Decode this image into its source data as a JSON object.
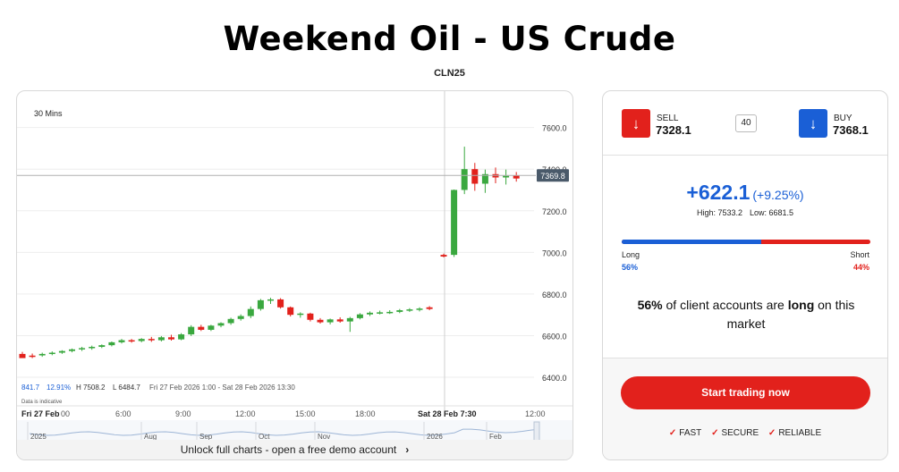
{
  "header": {
    "title": "Weekend Oil - US Crude",
    "code": "CLN25"
  },
  "chart_panel": {
    "interval_label": "30 Mins",
    "stats": {
      "change": "841.7",
      "change_pct": "12.91%",
      "high": "H 7508.2",
      "low": "L 6484.7",
      "range": "Fri 27 Feb 2026 1:00 - Sat 28 Feb 2026 13:30"
    },
    "indicative_note": "Data is indicative",
    "unlock_text": "Unlock full charts - open a free demo account",
    "navigator_labels": [
      "2025",
      "Aug",
      "Sep",
      "Oct",
      "Nov",
      "2026",
      "Feb"
    ]
  },
  "chart_data": {
    "type": "candlestick",
    "ylim": [
      6400,
      7650
    ],
    "y_ticks": [
      "6400.0",
      "6600.0",
      "6800.0",
      "7000.0",
      "7200.0",
      "7400.0",
      "7600.0"
    ],
    "x_tick_labels": [
      "Fri 27 Feb",
      "00",
      "6:00",
      "9:00",
      "12:00",
      "15:00",
      "18:00",
      "Sat 28 Feb 7:30",
      "12:00"
    ],
    "current_price_label": "7369.8",
    "current_price": 7369.8,
    "candles": [
      [
        6512,
        6522,
        6495,
        6492
      ],
      [
        6504,
        6514,
        6492,
        6498
      ],
      [
        6505,
        6518,
        6498,
        6512
      ],
      [
        6512,
        6524,
        6506,
        6518
      ],
      [
        6518,
        6530,
        6512,
        6526
      ],
      [
        6526,
        6538,
        6520,
        6534
      ],
      [
        6534,
        6546,
        6526,
        6540
      ],
      [
        6540,
        6552,
        6532,
        6546
      ],
      [
        6546,
        6558,
        6540,
        6554
      ],
      [
        6554,
        6572,
        6548,
        6568
      ],
      [
        6568,
        6584,
        6562,
        6578
      ],
      [
        6578,
        6584,
        6566,
        6574
      ],
      [
        6574,
        6588,
        6568,
        6584
      ],
      [
        6584,
        6594,
        6570,
        6578
      ],
      [
        6578,
        6598,
        6572,
        6592
      ],
      [
        6592,
        6604,
        6576,
        6582
      ],
      [
        6582,
        6612,
        6578,
        6606
      ],
      [
        6606,
        6650,
        6598,
        6642
      ],
      [
        6642,
        6652,
        6622,
        6628
      ],
      [
        6628,
        6652,
        6622,
        6648
      ],
      [
        6648,
        6664,
        6640,
        6660
      ],
      [
        6660,
        6686,
        6652,
        6680
      ],
      [
        6680,
        6702,
        6672,
        6694
      ],
      [
        6694,
        6740,
        6684,
        6728
      ],
      [
        6728,
        6776,
        6720,
        6770
      ],
      [
        6770,
        6782,
        6752,
        6774
      ],
      [
        6774,
        6780,
        6730,
        6736
      ],
      [
        6736,
        6740,
        6692,
        6700
      ],
      [
        6700,
        6712,
        6686,
        6706
      ],
      [
        6706,
        6710,
        6668,
        6676
      ],
      [
        6676,
        6684,
        6658,
        6664
      ],
      [
        6664,
        6682,
        6654,
        6678
      ],
      [
        6678,
        6688,
        6662,
        6668
      ],
      [
        6668,
        6690,
        6618,
        6684
      ],
      [
        6684,
        6708,
        6678,
        6702
      ],
      [
        6702,
        6716,
        6694,
        6710
      ],
      [
        6710,
        6720,
        6702,
        6712
      ],
      [
        6712,
        6722,
        6704,
        6714
      ],
      [
        6714,
        6728,
        6708,
        6722
      ],
      [
        6722,
        6732,
        6714,
        6726
      ],
      [
        6726,
        6736,
        6716,
        6730
      ],
      [
        6736,
        6742,
        6722,
        6728
      ],
      [
        6988,
        6994,
        6976,
        6980
      ],
      [
        6988,
        7302,
        6978,
        7300
      ],
      [
        7300,
        7508,
        7280,
        7400
      ],
      [
        7400,
        7430,
        7296,
        7330
      ],
      [
        7330,
        7398,
        7286,
        7376
      ],
      [
        7376,
        7408,
        7332,
        7360
      ],
      [
        7360,
        7398,
        7326,
        7368
      ],
      [
        7370,
        7386,
        7340,
        7355
      ]
    ]
  },
  "trade_panel": {
    "sell": {
      "label": "SELL",
      "price": "7328.1"
    },
    "spread": "40",
    "buy": {
      "label": "BUY",
      "price": "7368.1"
    },
    "change": "+622.1",
    "change_pct": "(+9.25%)",
    "high": "High: 7533.2",
    "low": "Low: 6681.5",
    "long_pct": 56,
    "long_label": "Long",
    "long_pct_text": "56%",
    "short_label": "Short",
    "short_pct_text": "44%",
    "sentence": {
      "pct": "56%",
      "mid": " of client accounts are ",
      "word": "long",
      "tail": " on this market"
    },
    "cta": "Start trading now",
    "badges": [
      "FAST",
      "SECURE",
      "RELIABLE"
    ]
  },
  "colors": {
    "up": "#3aa83f",
    "down": "#e2211c",
    "accent_blue": "#1a5fd6",
    "price_tag": "#4a5a6a"
  }
}
